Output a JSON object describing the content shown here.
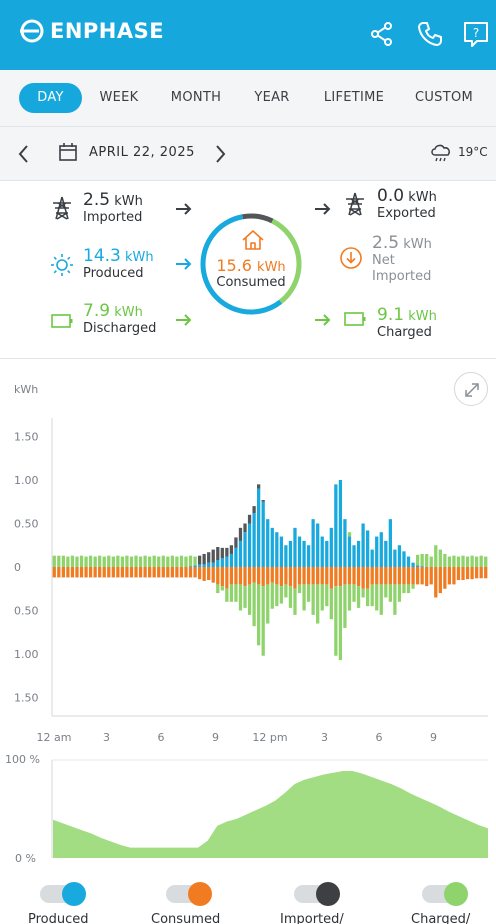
{
  "app": {
    "brand": "ENPHASE"
  },
  "header": {
    "icons": [
      "share-icon",
      "phone-icon",
      "help-icon"
    ]
  },
  "tabs": [
    {
      "label": "DAY",
      "active": true
    },
    {
      "label": "WEEK",
      "active": false
    },
    {
      "label": "MONTH",
      "active": false
    },
    {
      "label": "YEAR",
      "active": false
    },
    {
      "label": "LIFETIME",
      "active": false
    },
    {
      "label": "CUSTOM",
      "active": false
    }
  ],
  "date_bar": {
    "date": "APRIL 22, 2025",
    "temperature": "19°C",
    "weather_icon": "rain-cloud-icon"
  },
  "summary": {
    "imported": {
      "value": "2.5",
      "unit": "kWh",
      "label": "Imported"
    },
    "produced": {
      "value": "14.3",
      "unit": "kWh",
      "label": "Produced"
    },
    "discharged": {
      "value": "7.9",
      "unit": "kWh",
      "label": "Discharged"
    },
    "consumed": {
      "value": "15.6",
      "unit": "kWh",
      "label": "Consumed"
    },
    "exported": {
      "value": "0.0",
      "unit": "kWh",
      "label": "Exported"
    },
    "net_imported": {
      "value": "2.5",
      "unit": "kWh",
      "label_line1": "Net",
      "label_line2": "Imported"
    },
    "charged": {
      "value": "9.1",
      "unit": "kWh",
      "label": "Charged"
    }
  },
  "colors": {
    "brand": "#16a7dd",
    "produced": "#18a9de",
    "consumed": "#f07b21",
    "imported": "#545759",
    "charged": "#8ed36b",
    "soc_fill": "#a3dd83"
  },
  "chart_data": [
    {
      "type": "bar",
      "ylabel": "kWh",
      "y_ticks_top": [
        "1.50",
        "1.00",
        "0.50",
        "0"
      ],
      "y_ticks_bottom": [
        "0.50",
        "1.00",
        "1.50"
      ],
      "ylim": [
        -1.5,
        1.5
      ],
      "x_tick_labels": [
        "12 am",
        "3",
        "6",
        "9",
        "12 pm",
        "3",
        "6",
        "9"
      ],
      "interval_minutes": 15,
      "series": [
        {
          "name": "Produced",
          "values": [
            0,
            0,
            0,
            0,
            0,
            0,
            0,
            0,
            0,
            0,
            0,
            0,
            0,
            0,
            0,
            0,
            0,
            0,
            0,
            0,
            0,
            0,
            0,
            0,
            0,
            0,
            0,
            0,
            0,
            0,
            0.01,
            0.02,
            0.03,
            0.03,
            0.05,
            0.05,
            0.08,
            0.1,
            0.12,
            0.15,
            0.22,
            0.3,
            0.4,
            0.5,
            0.62,
            0.9,
            0.75,
            0.55,
            0.45,
            0.4,
            0.35,
            0.25,
            0.3,
            0.45,
            0.35,
            0.3,
            0.25,
            0.55,
            0.5,
            0.35,
            0.3,
            0.45,
            0.95,
            1.0,
            0.55,
            0.35,
            0.25,
            0.3,
            0.5,
            0.42,
            0.2,
            0.35,
            0.4,
            0.3,
            0.55,
            0.2,
            0.25,
            0.18,
            0.12,
            0.05,
            0.02,
            0.01,
            0,
            0,
            0,
            0,
            0,
            0,
            0,
            0,
            0,
            0,
            0,
            0,
            0,
            0
          ]
        },
        {
          "name": "Imported",
          "values": [
            0,
            0,
            0,
            0,
            0,
            0,
            0,
            0,
            0,
            0,
            0,
            0,
            0,
            0,
            0,
            0,
            0,
            0,
            0,
            0,
            0,
            0,
            0,
            0,
            0,
            0,
            0,
            0,
            0,
            0,
            0,
            0,
            0.1,
            0.12,
            0.12,
            0.15,
            0.15,
            0.12,
            0.1,
            0.1,
            0.12,
            0.15,
            0.1,
            0.1,
            0.08,
            0.05,
            0.02,
            0,
            0,
            0,
            0,
            0,
            0,
            0,
            0,
            0,
            0,
            0,
            0,
            0,
            0,
            0,
            0,
            0,
            0,
            0,
            0,
            0,
            0,
            0,
            0,
            0,
            0,
            0,
            0,
            0,
            0,
            0,
            0,
            0,
            0,
            0,
            0,
            0,
            0,
            0,
            0,
            0,
            0,
            0,
            0,
            0,
            0,
            0,
            0,
            0
          ]
        },
        {
          "name": "Discharged",
          "values": [
            0.13,
            0.13,
            0.13,
            0.12,
            0.13,
            0.12,
            0.13,
            0.12,
            0.13,
            0.12,
            0.13,
            0.12,
            0.13,
            0.12,
            0.13,
            0.12,
            0.13,
            0.12,
            0.13,
            0.12,
            0.13,
            0.12,
            0.13,
            0.12,
            0.13,
            0.12,
            0.13,
            0.12,
            0.13,
            0.12,
            0.12,
            0.1,
            0,
            0,
            0,
            0,
            0,
            0,
            0,
            0,
            0,
            0,
            0,
            0,
            0,
            0,
            0,
            0,
            0,
            0,
            0,
            0,
            0,
            0,
            0,
            0,
            0,
            0,
            0,
            0,
            0,
            0,
            0,
            0,
            0,
            0.05,
            0,
            0,
            0,
            0,
            0,
            0,
            0,
            0,
            0,
            0,
            0,
            0,
            0,
            0,
            0.12,
            0.14,
            0.15,
            0.12,
            0.25,
            0.2,
            0.15,
            0.12,
            0.13,
            0.12,
            0.13,
            0.12,
            0.13,
            0.12,
            0.13,
            0.12
          ]
        },
        {
          "name": "Consumed",
          "values": [
            -0.12,
            -0.12,
            -0.12,
            -0.12,
            -0.12,
            -0.12,
            -0.12,
            -0.12,
            -0.12,
            -0.12,
            -0.12,
            -0.12,
            -0.12,
            -0.12,
            -0.12,
            -0.12,
            -0.12,
            -0.12,
            -0.12,
            -0.12,
            -0.12,
            -0.12,
            -0.12,
            -0.12,
            -0.12,
            -0.12,
            -0.12,
            -0.12,
            -0.12,
            -0.12,
            -0.12,
            -0.12,
            -0.14,
            -0.16,
            -0.15,
            -0.18,
            -0.2,
            -0.22,
            -0.25,
            -0.2,
            -0.2,
            -0.2,
            -0.22,
            -0.2,
            -0.18,
            -0.2,
            -0.22,
            -0.2,
            -0.18,
            -0.2,
            -0.22,
            -0.2,
            -0.22,
            -0.25,
            -0.2,
            -0.2,
            -0.2,
            -0.2,
            -0.2,
            -0.2,
            -0.2,
            -0.25,
            -0.22,
            -0.22,
            -0.2,
            -0.2,
            -0.2,
            -0.22,
            -0.25,
            -0.25,
            -0.2,
            -0.2,
            -0.2,
            -0.2,
            -0.2,
            -0.2,
            -0.2,
            -0.2,
            -0.2,
            -0.2,
            -0.2,
            -0.2,
            -0.22,
            -0.2,
            -0.35,
            -0.3,
            -0.25,
            -0.2,
            -0.2,
            -0.15,
            -0.15,
            -0.14,
            -0.14,
            -0.13,
            -0.13,
            -0.13
          ]
        },
        {
          "name": "Charged",
          "values": [
            0,
            0,
            0,
            0,
            0,
            0,
            0,
            0,
            0,
            0,
            0,
            0,
            0,
            0,
            0,
            0,
            0,
            0,
            0,
            0,
            0,
            0,
            0,
            0,
            0,
            0,
            0,
            0,
            0,
            0,
            0,
            0,
            0,
            0,
            0,
            0,
            -0.1,
            -0.05,
            -0.15,
            -0.2,
            -0.2,
            -0.3,
            -0.25,
            -0.35,
            -0.5,
            -0.7,
            -0.8,
            -0.45,
            -0.3,
            -0.25,
            -0.2,
            -0.15,
            -0.25,
            -0.3,
            -0.1,
            -0.3,
            -0.2,
            -0.35,
            -0.45,
            -0.3,
            -0.25,
            -0.35,
            -0.8,
            -0.85,
            -0.5,
            -0.3,
            -0.2,
            -0.25,
            -0.1,
            -0.2,
            -0.25,
            -0.3,
            -0.35,
            -0.15,
            -0.2,
            -0.35,
            -0.2,
            -0.1,
            -0.1,
            -0.05,
            0,
            0,
            0,
            0,
            0,
            0,
            0,
            0,
            0,
            0,
            0,
            0,
            0,
            0,
            0,
            0
          ]
        }
      ]
    },
    {
      "type": "area",
      "y_ticks": [
        "100 %",
        "0 %"
      ],
      "ylim": [
        0,
        100
      ],
      "series": [
        {
          "name": "Battery",
          "values": [
            44,
            40,
            36,
            32,
            28,
            23,
            19,
            15,
            12,
            12,
            12,
            12,
            12,
            12,
            12,
            12,
            20,
            37,
            42,
            45,
            50,
            55,
            60,
            66,
            75,
            85,
            90,
            93,
            96,
            98,
            100,
            100,
            97,
            93,
            89,
            85,
            80,
            74,
            69,
            64,
            59,
            53,
            48,
            43,
            38,
            34
          ]
        }
      ]
    }
  ],
  "legend": [
    {
      "label": "Produced",
      "knob_color": "#18a9de"
    },
    {
      "label": "Consumed",
      "knob_color": "#f07b21"
    },
    {
      "label": "Imported/",
      "knob_color": "#3d3f42"
    },
    {
      "label": "Charged/",
      "knob_color": "#8ed36b"
    }
  ]
}
